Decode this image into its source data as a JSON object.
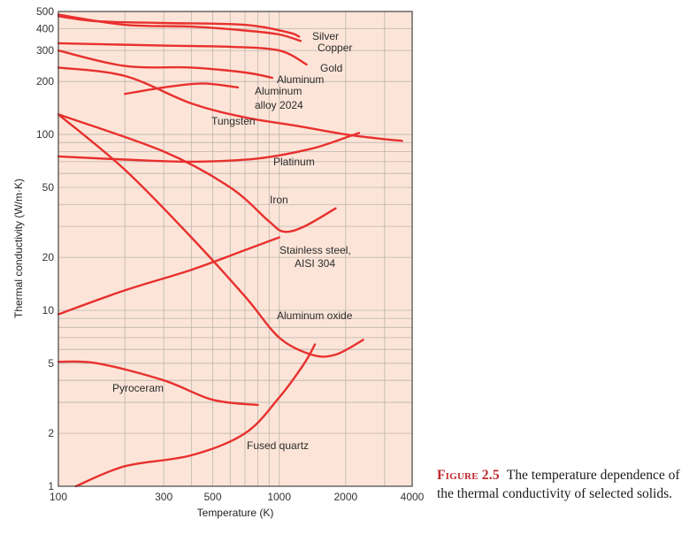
{
  "chart_data": {
    "type": "line",
    "xscale": "log",
    "yscale": "log",
    "xlabel": "Temperature (K)",
    "ylabel": "Thermal conductivity (W/m·K)",
    "xlim": [
      100,
      4000
    ],
    "ylim": [
      1,
      500
    ],
    "x_ticks": [
      100,
      300,
      500,
      1000,
      2000,
      4000
    ],
    "x_tick_labels": [
      "100",
      "300",
      "500",
      "1000",
      "2000",
      "4000"
    ],
    "y_ticks": [
      1,
      2,
      5,
      10,
      20,
      50,
      100,
      200,
      300,
      400,
      500
    ],
    "y_tick_labels": [
      "1",
      "2",
      "5",
      "10",
      "20",
      "50",
      "100",
      "200",
      "300",
      "400",
      "500"
    ],
    "grid": true,
    "series": [
      {
        "name": "Silver",
        "label": "Silver",
        "x": [
          100,
          150,
          300,
          700,
          1100,
          1230
        ],
        "y": [
          470,
          440,
          430,
          420,
          380,
          360
        ]
      },
      {
        "name": "Copper",
        "label": "Copper",
        "x": [
          100,
          200,
          400,
          700,
          1000,
          1250
        ],
        "y": [
          480,
          420,
          410,
          390,
          370,
          340
        ]
      },
      {
        "name": "Gold",
        "label": "Gold",
        "x": [
          100,
          300,
          600,
          1000,
          1330
        ],
        "y": [
          330,
          320,
          315,
          300,
          250
        ]
      },
      {
        "name": "Aluminum",
        "label": "Aluminum",
        "x": [
          100,
          200,
          400,
          700,
          930
        ],
        "y": [
          300,
          245,
          240,
          225,
          210
        ]
      },
      {
        "name": "Aluminum alloy 2024",
        "label_lines": [
          "Aluminum",
          "alloy 2024"
        ],
        "x": [
          200,
          300,
          450,
          650
        ],
        "y": [
          170,
          185,
          195,
          185
        ]
      },
      {
        "name": "Tungsten",
        "label": "Tungsten",
        "x": [
          100,
          200,
          400,
          700,
          1200,
          2000,
          3000,
          3600
        ],
        "y": [
          240,
          215,
          150,
          125,
          112,
          100,
          94,
          92
        ]
      },
      {
        "name": "Platinum",
        "label": "Platinum",
        "x": [
          100,
          200,
          400,
          800,
          1400,
          2000,
          2300
        ],
        "y": [
          75,
          72,
          70,
          73,
          83,
          96,
          102
        ]
      },
      {
        "name": "Iron",
        "label": "Iron",
        "x": [
          100,
          300,
          600,
          900,
          1050,
          1300,
          1800
        ],
        "y": [
          130,
          80,
          50,
          32,
          28,
          30,
          38
        ]
      },
      {
        "name": "Stainless steel, AISI 304",
        "label_lines": [
          "Stainless steel,",
          "AISI 304"
        ],
        "x": [
          100,
          200,
          400,
          700,
          1000
        ],
        "y": [
          9.5,
          13,
          17,
          22,
          26
        ]
      },
      {
        "name": "Aluminum oxide",
        "label": "Aluminum oxide",
        "x": [
          100,
          200,
          400,
          700,
          1000,
          1400,
          1800,
          2400
        ],
        "y": [
          130,
          63,
          26,
          12,
          7,
          5.6,
          5.6,
          6.8
        ]
      },
      {
        "name": "Pyroceram",
        "label": "Pyroceram",
        "x": [
          100,
          150,
          300,
          500,
          800
        ],
        "y": [
          5.1,
          5.0,
          4.0,
          3.1,
          2.9
        ]
      },
      {
        "name": "Fused quartz",
        "label": "Fused quartz",
        "x": [
          120,
          200,
          400,
          700,
          1000,
          1300,
          1450
        ],
        "y": [
          1.0,
          1.3,
          1.5,
          2.0,
          3.2,
          5.0,
          6.4
        ]
      }
    ],
    "colors": {
      "background": "#fce5d8",
      "grid": "#bcb4ad",
      "curve": "#e8302e",
      "border": "#444444"
    }
  },
  "caption": {
    "figure_label": "Figure 2.5",
    "text": "The temperature dependence of the thermal conductivity of selected solids."
  }
}
